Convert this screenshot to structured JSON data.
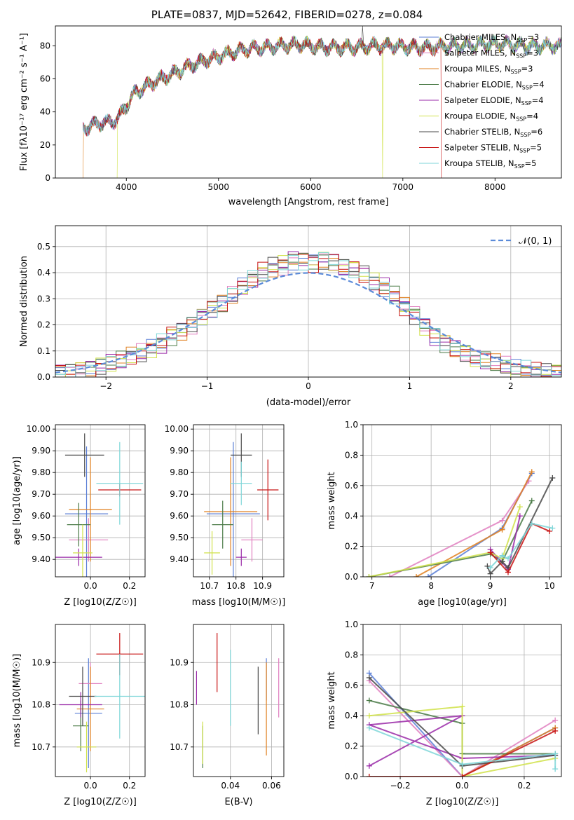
{
  "figure": {
    "title": "PLATE=0837, MJD=52642, FIBERID=0278, z=0.084"
  },
  "colors": {
    "chabrier_miles": "#5b7fd6",
    "salpeter_miles": "#e07fbf",
    "kroupa_miles": "#e08020",
    "chabrier_elodie": "#4a7a46",
    "salpeter_elodie": "#9a2aa8",
    "kroupa_elodie": "#d0e24a",
    "chabrier_stelib": "#4a4a4a",
    "salpeter_stelib": "#c81414",
    "kroupa_stelib": "#7ed6d8",
    "gaussian": "#5b8bd9",
    "grid": "#b0b0b0"
  },
  "chart_data": [
    {
      "id": "spectrum",
      "type": "line",
      "title": "PLATE=0837, MJD=52642, FIBERID=0278, z=0.084",
      "xlabel": "wavelength [Angstrom, rest frame]",
      "ylabel": "Flux [fλ10⁻¹⁷ erg cm⁻² s⁻¹ A⁻¹]",
      "xlim": [
        3230,
        8720
      ],
      "ylim": [
        0,
        92
      ],
      "xticks": [
        4000,
        5000,
        6000,
        7000,
        8000
      ],
      "yticks": [
        0,
        20,
        40,
        60,
        80
      ],
      "legend_position": "right",
      "legend": [
        "Chabrier MILES, N_SSP=3",
        "Salpeter MILES, N_SSP=3",
        "Kroupa MILES, N_SSP=3",
        "Chabrier ELODIE, N_SSP=4",
        "Salpeter ELODIE, N_SSP=4",
        "Kroupa ELODIE, N_SSP=4",
        "Chabrier STELIB, N_SSP=6",
        "Salpeter STELIB, N_SSP=5",
        "Kroupa STELIB, N_SSP=5"
      ],
      "continuum": [
        [
          3530,
          30
        ],
        [
          3700,
          33
        ],
        [
          3900,
          35
        ],
        [
          4000,
          44
        ],
        [
          4100,
          52
        ],
        [
          4300,
          58
        ],
        [
          4500,
          63
        ],
        [
          4700,
          68
        ],
        [
          4900,
          72
        ],
        [
          5100,
          75
        ],
        [
          5300,
          78
        ],
        [
          5500,
          79
        ],
        [
          5700,
          80
        ],
        [
          5900,
          81
        ],
        [
          6100,
          79
        ],
        [
          6300,
          79
        ],
        [
          6500,
          79
        ],
        [
          6700,
          80
        ],
        [
          6900,
          80
        ],
        [
          7100,
          79
        ],
        [
          7300,
          79
        ],
        [
          7500,
          80
        ],
        [
          7700,
          80
        ],
        [
          7900,
          81
        ],
        [
          8100,
          81
        ],
        [
          8300,
          80
        ],
        [
          8500,
          80
        ],
        [
          8720,
          80
        ]
      ],
      "series_range": [
        [
          3530,
          8720
        ],
        [
          3530,
          8720
        ],
        [
          3530,
          8720
        ],
        [
          3530,
          8720
        ],
        [
          3530,
          8720
        ],
        [
          3900,
          8720
        ],
        [
          3530,
          8720
        ],
        [
          3530,
          7420
        ],
        [
          3530,
          8720
        ]
      ],
      "series_drops": [
        {
          "series": 2,
          "x": 3530
        },
        {
          "series": 5,
          "x": 3900
        },
        {
          "series": 5,
          "x": 6780
        },
        {
          "series": 7,
          "x": 7420
        }
      ],
      "emission_line": {
        "x": 6563,
        "y": 92
      }
    },
    {
      "id": "residuals",
      "type": "histogram",
      "xlabel": "(data-model)/error",
      "ylabel": "Normed distribution",
      "xlim": [
        -2.5,
        2.5
      ],
      "ylim": [
        0,
        0.58
      ],
      "xticks": [
        -2,
        -1,
        0,
        1,
        2
      ],
      "yticks": [
        0.0,
        0.1,
        0.2,
        0.3,
        0.4,
        0.5
      ],
      "legend_position": "upper right",
      "reference_curve": "𝒩(0, 1)",
      "bin_width": 0.1,
      "envelope_x": [
        -2.5,
        -2.4,
        -2.3,
        -2.2,
        -2.1,
        -2.0,
        -1.9,
        -1.8,
        -1.7,
        -1.6,
        -1.5,
        -1.4,
        -1.3,
        -1.2,
        -1.1,
        -1.0,
        -0.9,
        -0.8,
        -0.7,
        -0.6,
        -0.5,
        -0.4,
        -0.3,
        -0.2,
        -0.1,
        0.0,
        0.1,
        0.2,
        0.3,
        0.4,
        0.5,
        0.6,
        0.7,
        0.8,
        0.9,
        1.0,
        1.1,
        1.2,
        1.3,
        1.4,
        1.5,
        1.6,
        1.7,
        1.8,
        1.9,
        2.0,
        2.1,
        2.2,
        2.3,
        2.4
      ],
      "envelope_y": [
        0.02,
        0.02,
        0.025,
        0.03,
        0.04,
        0.05,
        0.06,
        0.075,
        0.09,
        0.11,
        0.13,
        0.16,
        0.18,
        0.2,
        0.23,
        0.26,
        0.28,
        0.31,
        0.34,
        0.37,
        0.4,
        0.42,
        0.43,
        0.45,
        0.45,
        0.44,
        0.45,
        0.44,
        0.42,
        0.41,
        0.39,
        0.36,
        0.34,
        0.31,
        0.27,
        0.24,
        0.2,
        0.16,
        0.13,
        0.11,
        0.09,
        0.07,
        0.06,
        0.05,
        0.04,
        0.03,
        0.025,
        0.02,
        0.02,
        0.02
      ],
      "series_jitter": [
        0.04,
        -0.03,
        0.02,
        -0.02,
        0.03,
        -0.04,
        0.01,
        0.03,
        -0.01
      ]
    },
    {
      "id": "age-vs-z",
      "type": "scatter",
      "xlabel": "Z [log10(Z/Z☉)]",
      "ylabel": "age [log10(age/yr)]",
      "xlim": [
        -0.18,
        0.28
      ],
      "ylim": [
        9.32,
        10.02
      ],
      "xticks": [
        0.0,
        0.2
      ],
      "yticks": [
        9.4,
        9.5,
        9.6,
        9.7,
        9.8,
        9.9,
        10.0
      ],
      "points": [
        {
          "series": 0,
          "x": -0.02,
          "xerr": 0.11,
          "y": 9.61,
          "yerr": 0.31
        },
        {
          "series": 1,
          "x": -0.01,
          "xerr": 0.1,
          "y": 9.49,
          "yerr": 0.1
        },
        {
          "series": 2,
          "x": 0.0,
          "xerr": 0.11,
          "y": 9.63,
          "yerr": 0.24
        },
        {
          "series": 3,
          "x": -0.06,
          "xerr": 0.06,
          "y": 9.56,
          "yerr": 0.1
        },
        {
          "series": 4,
          "x": -0.06,
          "xerr": 0.12,
          "y": 9.41,
          "yerr": 0.04
        },
        {
          "series": 5,
          "x": -0.04,
          "xerr": 0.05,
          "y": 9.43,
          "yerr": 0.13
        },
        {
          "series": 6,
          "x": -0.03,
          "xerr": 0.1,
          "y": 9.88,
          "yerr": 0.1
        },
        {
          "series": 7,
          "x": 0.15,
          "xerr": 0.11,
          "y": 9.72,
          "yerr": 0.03
        },
        {
          "series": 8,
          "x": 0.15,
          "xerr": 0.12,
          "y": 9.75,
          "yerr": 0.19
        }
      ]
    },
    {
      "id": "age-vs-mass",
      "type": "scatter",
      "xlabel": "mass [log10(M/M☉)]",
      "ylabel": "",
      "xlim": [
        10.64,
        10.98
      ],
      "ylim": [
        9.32,
        10.02
      ],
      "xticks": [
        10.7,
        10.8,
        10.9
      ],
      "yticks": [
        9.4,
        9.5,
        9.6,
        9.7,
        9.8,
        9.9,
        10.0
      ],
      "points": [
        {
          "series": 0,
          "x": 10.79,
          "xerr": 0.1,
          "y": 9.61,
          "yerr": 0.33
        },
        {
          "series": 1,
          "x": 10.86,
          "xerr": 0.04,
          "y": 9.49,
          "yerr": 0.1
        },
        {
          "series": 2,
          "x": 10.78,
          "xerr": 0.1,
          "y": 9.62,
          "yerr": 0.25
        },
        {
          "series": 3,
          "x": 10.75,
          "xerr": 0.04,
          "y": 9.56,
          "yerr": 0.11
        },
        {
          "series": 4,
          "x": 10.82,
          "xerr": 0.02,
          "y": 9.41,
          "yerr": 0.04
        },
        {
          "series": 5,
          "x": 10.71,
          "xerr": 0.03,
          "y": 9.43,
          "yerr": 0.1
        },
        {
          "series": 6,
          "x": 10.82,
          "xerr": 0.04,
          "y": 9.88,
          "yerr": 0.1
        },
        {
          "series": 7,
          "x": 10.92,
          "xerr": 0.04,
          "y": 9.72,
          "yerr": 0.14
        },
        {
          "series": 8,
          "x": 10.82,
          "xerr": 0.04,
          "y": 9.75,
          "yerr": 0.1
        }
      ]
    },
    {
      "id": "massweight-vs-age",
      "type": "line",
      "xlabel": "age [log10(age/yr)]",
      "ylabel": "mass weight",
      "xlim": [
        6.85,
        10.2
      ],
      "ylim": [
        0,
        1
      ],
      "xticks": [
        7,
        8,
        9,
        10
      ],
      "yticks": [
        0.0,
        0.2,
        0.4,
        0.6,
        0.8,
        1.0
      ],
      "series": [
        {
          "series": 0,
          "points": [
            [
              7.95,
              0.0
            ],
            [
              9.2,
              0.32
            ],
            [
              9.7,
              0.68
            ]
          ]
        },
        {
          "series": 1,
          "points": [
            [
              7.3,
              0.0
            ],
            [
              9.2,
              0.37
            ],
            [
              9.65,
              0.63
            ]
          ]
        },
        {
          "series": 2,
          "points": [
            [
              7.75,
              0.0
            ],
            [
              9.2,
              0.31
            ],
            [
              9.7,
              0.69
            ]
          ]
        },
        {
          "series": 3,
          "points": [
            [
              6.95,
              0.0
            ],
            [
              9.0,
              0.15
            ],
            [
              9.2,
              0.1
            ],
            [
              9.7,
              0.5
            ]
          ]
        },
        {
          "series": 4,
          "points": [
            [
              9.0,
              0.18
            ],
            [
              9.3,
              0.05
            ],
            [
              9.5,
              0.4
            ]
          ]
        },
        {
          "series": 5,
          "points": [
            [
              6.95,
              0.0
            ],
            [
              9.0,
              0.16
            ],
            [
              9.2,
              0.12
            ],
            [
              9.5,
              0.46
            ]
          ]
        },
        {
          "series": 6,
          "points": [
            [
              8.95,
              0.07
            ],
            [
              9.0,
              0.02
            ],
            [
              9.2,
              0.1
            ],
            [
              9.3,
              0.06
            ],
            [
              10.05,
              0.65
            ]
          ]
        },
        {
          "series": 7,
          "points": [
            [
              9.0,
              0.16
            ],
            [
              9.3,
              0.03
            ],
            [
              9.7,
              0.35
            ],
            [
              10.0,
              0.3
            ]
          ]
        },
        {
          "series": 8,
          "points": [
            [
              9.0,
              0.06
            ],
            [
              9.2,
              0.14
            ],
            [
              9.3,
              0.12
            ],
            [
              9.7,
              0.35
            ],
            [
              10.05,
              0.32
            ]
          ]
        }
      ]
    },
    {
      "id": "mass-vs-z",
      "type": "scatter",
      "xlabel": "Z [log10(Z/Z☉)]",
      "ylabel": "mass [log10(M/M☉)]",
      "xlim": [
        -0.18,
        0.28
      ],
      "ylim": [
        10.63,
        10.99
      ],
      "xticks": [
        0.0,
        0.2
      ],
      "yticks": [
        10.7,
        10.8,
        10.9
      ],
      "points": [
        {
          "series": 0,
          "x": -0.01,
          "xerr": 0.07,
          "y": 10.78,
          "yerr": 0.13
        },
        {
          "series": 1,
          "x": 0.0,
          "xerr": 0.06,
          "y": 10.85,
          "yerr": 0.05
        },
        {
          "series": 2,
          "x": 0.0,
          "xerr": 0.07,
          "y": 10.79,
          "yerr": 0.1
        },
        {
          "series": 3,
          "x": -0.05,
          "xerr": 0.04,
          "y": 10.75,
          "yerr": 0.06
        },
        {
          "series": 4,
          "x": -0.05,
          "xerr": 0.11,
          "y": 10.8,
          "yerr": 0.03
        },
        {
          "series": 5,
          "x": -0.02,
          "xerr": 0.05,
          "y": 10.7,
          "yerr": 0.06
        },
        {
          "series": 6,
          "x": -0.04,
          "xerr": 0.07,
          "y": 10.82,
          "yerr": 0.07
        },
        {
          "series": 7,
          "x": 0.15,
          "xerr": 0.12,
          "y": 10.92,
          "yerr": 0.05
        },
        {
          "series": 8,
          "x": 0.15,
          "xerr": 0.13,
          "y": 10.82,
          "yerr": 0.1
        }
      ]
    },
    {
      "id": "mass-vs-ebv",
      "type": "scatter",
      "xlabel": "E(B-V)",
      "ylabel": "",
      "xlim": [
        0.022,
        0.066
      ],
      "ylim": [
        10.63,
        10.99
      ],
      "xticks": [
        0.04,
        0.06
      ],
      "yticks": [
        10.7,
        10.8,
        10.9
      ],
      "points": [
        {
          "series": 0,
          "x": 0.0575,
          "yerr": 0.05,
          "y": 10.86
        },
        {
          "series": 1,
          "x": 0.0635,
          "yerr": 0.07,
          "y": 10.84
        },
        {
          "series": 2,
          "x": 0.0575,
          "yerr": 0.11,
          "y": 10.79
        },
        {
          "series": 3,
          "x": 0.0265,
          "yerr": 0.05,
          "y": 10.7
        },
        {
          "series": 4,
          "x": 0.0235,
          "yerr": 0.04,
          "y": 10.84
        },
        {
          "series": 5,
          "x": 0.0265,
          "yerr": 0.05,
          "y": 10.71
        },
        {
          "series": 6,
          "x": 0.0535,
          "yerr": 0.08,
          "y": 10.81
        },
        {
          "series": 7,
          "x": 0.0335,
          "yerr": 0.07,
          "y": 10.9
        },
        {
          "series": 8,
          "x": 0.04,
          "yerr": 0.09,
          "y": 10.84
        }
      ]
    },
    {
      "id": "massweight-vs-z",
      "type": "line",
      "xlabel": "Z [log10(Z/Z☉)]",
      "ylabel": "mass weight",
      "xlim": [
        -0.32,
        0.32
      ],
      "ylim": [
        0,
        1
      ],
      "xticks": [
        -0.2,
        0.0,
        0.2
      ],
      "yticks": [
        0.0,
        0.2,
        0.4,
        0.6,
        0.8,
        1.0
      ],
      "series": [
        {
          "series": 0,
          "points": [
            [
              -0.3,
              0.68
            ],
            [
              0.0,
              0.0
            ],
            [
              0.3,
              0.32
            ]
          ]
        },
        {
          "series": 1,
          "points": [
            [
              -0.3,
              0.63
            ],
            [
              0.0,
              0.0
            ],
            [
              0.3,
              0.37
            ]
          ]
        },
        {
          "series": 2,
          "points": [
            [
              -0.3,
              0.0
            ],
            [
              0.0,
              0.0
            ],
            [
              0.3,
              0.32
            ]
          ]
        },
        {
          "series": 3,
          "points": [
            [
              -0.3,
              0.5
            ],
            [
              0.0,
              0.35
            ],
            [
              0.0,
              0.15
            ],
            [
              0.3,
              0.15
            ]
          ]
        },
        {
          "series": 4,
          "points": [
            [
              -0.3,
              0.07
            ],
            [
              0.0,
              0.4
            ],
            [
              -0.3,
              0.34
            ],
            [
              0.0,
              0.12
            ],
            [
              0.3,
              0.14
            ]
          ]
        },
        {
          "series": 5,
          "points": [
            [
              -0.3,
              0.4
            ],
            [
              0.0,
              0.46
            ],
            [
              0.0,
              0.0
            ],
            [
              0.3,
              0.12
            ]
          ]
        },
        {
          "series": 6,
          "points": [
            [
              -0.3,
              0.65
            ],
            [
              0.0,
              0.07
            ],
            [
              0.3,
              0.14
            ]
          ]
        },
        {
          "series": 7,
          "points": [
            [
              -0.3,
              0.0
            ],
            [
              0.0,
              0.0
            ],
            [
              0.3,
              0.3
            ]
          ]
        },
        {
          "series": 8,
          "points": [
            [
              -0.3,
              0.32
            ],
            [
              0.0,
              0.08
            ],
            [
              0.3,
              0.15
            ],
            [
              0.3,
              0.05
            ]
          ]
        }
      ]
    }
  ]
}
